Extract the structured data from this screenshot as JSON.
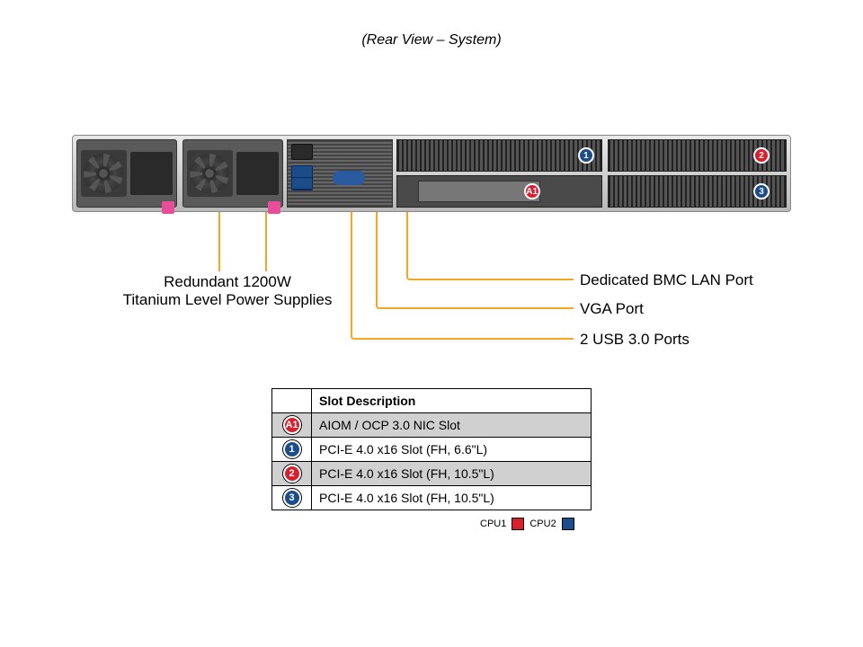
{
  "title": "(Rear View – System)",
  "callouts": {
    "psu": {
      "line1": "Redundant 1200W",
      "line2": "Titanium Level Power Supplies"
    },
    "bmc": "Dedicated BMC LAN Port",
    "vga": "VGA Port",
    "usb": "2 USB 3.0 Ports"
  },
  "callout_line_color": "#f5a623",
  "badges": {
    "A1": {
      "label": "A1",
      "color": "#d91e2e"
    },
    "1": {
      "label": "1",
      "color": "#1a4d8a"
    },
    "2": {
      "label": "2",
      "color": "#d91e2e"
    },
    "3": {
      "label": "3",
      "color": "#1a4d8a"
    }
  },
  "table": {
    "header_icon": "",
    "header_desc": "Slot Description",
    "rows": [
      {
        "badge": "A1",
        "badge_color": "#d91e2e",
        "desc": "AIOM / OCP 3.0 NIC Slot",
        "bg": "#d0d0d0"
      },
      {
        "badge": "1",
        "badge_color": "#1a4d8a",
        "desc": "PCI-E 4.0 x16 Slot (FH, 6.6\"L)",
        "bg": "#ffffff"
      },
      {
        "badge": "2",
        "badge_color": "#d91e2e",
        "desc": "PCI-E 4.0 x16 Slot (FH, 10.5\"L)",
        "bg": "#d0d0d0"
      },
      {
        "badge": "3",
        "badge_color": "#1a4d8a",
        "desc": "PCI-E 4.0 x16 Slot (FH, 10.5\"L)",
        "bg": "#ffffff"
      }
    ]
  },
  "legend": {
    "cpu1_label": "CPU1",
    "cpu1_color": "#d91e2e",
    "cpu2_label": "CPU2",
    "cpu2_color": "#1a4d8a"
  },
  "styling": {
    "background": "#ffffff",
    "title_fontsize": 16,
    "callout_fontsize": 17,
    "table_fontsize": 14,
    "legend_fontsize": 11,
    "chassis_gradient": [
      "#e8e8e8",
      "#d0d0d0",
      "#b8b8b8"
    ],
    "psu_background": "#5a5a5a",
    "psu_handle_color": "#e84d9a",
    "vga_color": "#2a5aa0",
    "usb_color": "#1a4d8a",
    "vent_dark": "#222222",
    "vent_light": "#555555"
  }
}
